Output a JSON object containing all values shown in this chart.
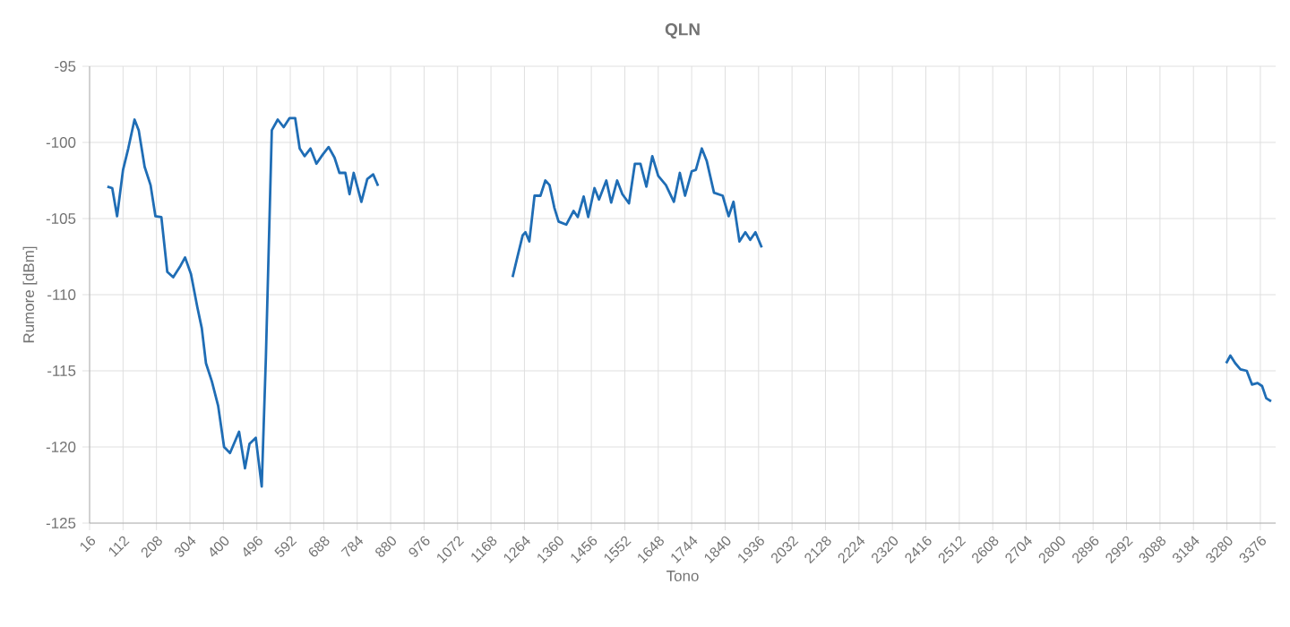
{
  "chart_data": {
    "type": "line",
    "title": "QLN",
    "xlabel": "Tono",
    "ylabel": "Rumore [dBm]",
    "x": [
      67,
      81,
      95,
      112,
      127,
      145,
      157,
      174,
      191,
      205,
      222,
      239,
      256,
      277,
      290,
      307,
      325,
      338,
      350,
      367,
      385,
      402,
      419,
      445,
      462,
      475,
      493,
      510,
      522,
      539,
      556,
      573,
      590,
      606,
      619,
      633,
      650,
      667,
      685,
      702,
      719,
      733,
      750,
      762,
      774,
      796,
      813,
      830,
      844,
      1000,
      1230,
      1242,
      1259,
      1267,
      1278,
      1293,
      1310,
      1324,
      1336,
      1350,
      1362,
      1384,
      1405,
      1417,
      1434,
      1447,
      1465,
      1478,
      1499,
      1513,
      1530,
      1545,
      1564,
      1581,
      1597,
      1614,
      1631,
      1648,
      1670,
      1693,
      1710,
      1725,
      1744,
      1756,
      1773,
      1787,
      1808,
      1833,
      1850,
      1864,
      1881,
      1898,
      1912,
      1927,
      1945,
      2600,
      3278,
      3290,
      3304,
      3319,
      3337,
      3352,
      3368,
      3381,
      3393,
      3407
    ],
    "series": [
      {
        "color": "#1f6db5",
        "values": [
          -102.9,
          -103.0,
          -104.85,
          -101.8,
          -100.4,
          -98.5,
          -99.2,
          -101.6,
          -102.8,
          -104.85,
          -104.9,
          -108.5,
          -108.85,
          -108.1,
          -107.55,
          -108.65,
          -110.8,
          -112.2,
          -114.5,
          -115.7,
          -117.3,
          -120.0,
          -120.4,
          -119.0,
          -121.4,
          -119.8,
          -119.4,
          -122.6,
          -114.1,
          -99.2,
          -98.5,
          -99.0,
          -98.4,
          -98.4,
          -100.4,
          -100.9,
          -100.4,
          -101.4,
          -100.8,
          -100.3,
          -101.0,
          -102.0,
          -102.0,
          -103.4,
          -102.0,
          -103.9,
          -102.4,
          -102.1,
          -102.85,
          null,
          -108.85,
          -107.7,
          -106.1,
          -105.9,
          -106.5,
          -103.5,
          -103.5,
          -102.5,
          -102.8,
          -104.3,
          -105.2,
          -105.4,
          -104.5,
          -104.9,
          -103.55,
          -104.9,
          -103.0,
          -103.75,
          -102.5,
          -103.95,
          -102.5,
          -103.4,
          -104.0,
          -101.4,
          -101.4,
          -102.9,
          -100.9,
          -102.2,
          -102.8,
          -103.9,
          -102.0,
          -103.5,
          -101.9,
          -101.8,
          -100.4,
          -101.2,
          -103.3,
          -103.5,
          -104.85,
          -103.9,
          -106.5,
          -105.9,
          -106.4,
          -105.9,
          -106.9,
          null,
          -114.5,
          -114.0,
          -114.5,
          -114.9,
          -115.0,
          -115.9,
          -115.8,
          -116.0,
          -116.8,
          -117.0
        ]
      }
    ],
    "xlim": [
      16,
      3420
    ],
    "xticks": [
      16,
      112,
      208,
      304,
      400,
      496,
      592,
      688,
      784,
      880,
      976,
      1072,
      1168,
      1264,
      1360,
      1456,
      1552,
      1648,
      1744,
      1840,
      1936,
      2032,
      2128,
      2224,
      2320,
      2416,
      2512,
      2608,
      2704,
      2800,
      2896,
      2992,
      3088,
      3184,
      3280,
      3376
    ],
    "ylim": [
      -125,
      -95
    ],
    "yticks": [
      -125,
      -120,
      -115,
      -110,
      -105,
      -100,
      -95
    ],
    "grid": true,
    "marker": "none",
    "line_style": "solid"
  }
}
